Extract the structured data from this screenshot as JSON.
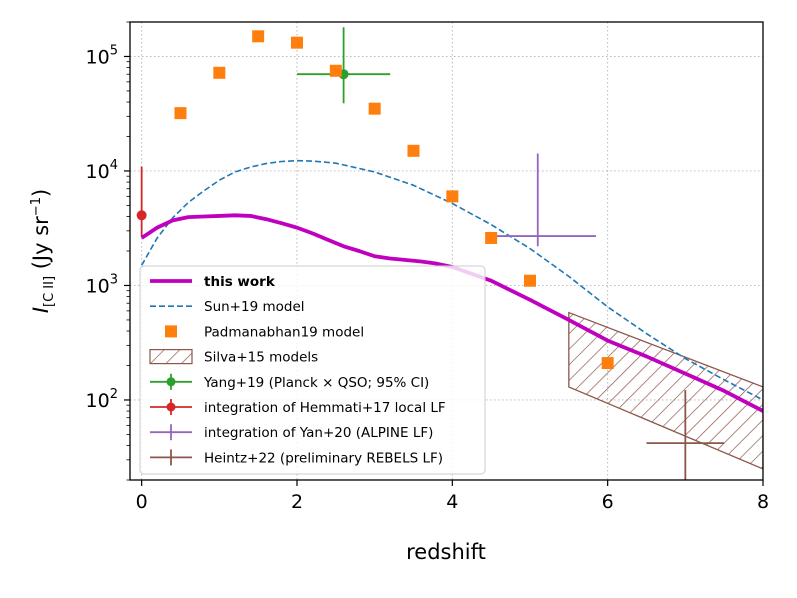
{
  "chart_data": {
    "type": "scatter",
    "xlabel": "redshift",
    "ylabel": "I[C II] (Jy sr−1)",
    "xlim": [
      -0.15,
      8
    ],
    "ylim": [
      20,
      200000
    ],
    "yscale": "log",
    "grid": true,
    "legend_placement": "lower-left",
    "x_ticks": [
      "0",
      "2",
      "4",
      "6",
      "8"
    ],
    "y_ticks": [
      "10^2",
      "10^3",
      "10^4",
      "10^5"
    ],
    "series": [
      {
        "name": "this work",
        "kind": "line",
        "color": "#bf00bf",
        "x": [
          0,
          0.2,
          0.4,
          0.6,
          0.8,
          1.0,
          1.2,
          1.4,
          1.6,
          1.8,
          2.0,
          2.2,
          2.4,
          2.6,
          2.8,
          3.0,
          3.2,
          3.4,
          3.6,
          3.8,
          4.0,
          4.5,
          5.0,
          5.5,
          6.0,
          6.5,
          7.0,
          7.5,
          8.0
        ],
        "y": [
          2600,
          3200,
          3700,
          3950,
          4000,
          4050,
          4100,
          4050,
          3800,
          3500,
          3200,
          2850,
          2500,
          2200,
          2000,
          1800,
          1720,
          1670,
          1620,
          1550,
          1450,
          1100,
          750,
          500,
          330,
          240,
          170,
          120,
          80
        ]
      },
      {
        "name": "Sun+19 model",
        "kind": "dashed-line",
        "color": "#1f77b4",
        "x": [
          0,
          0.2,
          0.4,
          0.6,
          0.8,
          1.0,
          1.2,
          1.4,
          1.6,
          1.8,
          2.0,
          2.2,
          2.5,
          3.0,
          3.5,
          4.0,
          4.5,
          5.0,
          5.5,
          6.0,
          6.5,
          7.0,
          7.5,
          8.0
        ],
        "y": [
          1500,
          2600,
          3900,
          5300,
          6700,
          8300,
          9800,
          10800,
          11600,
          12100,
          12300,
          12200,
          11700,
          9800,
          7500,
          5200,
          3400,
          2100,
          1200,
          650,
          380,
          230,
          150,
          100
        ]
      },
      {
        "name": "Padmanabhan19 model",
        "kind": "square-markers",
        "color": "#ff7f0e",
        "x": [
          0.5,
          1.0,
          1.5,
          2.0,
          2.5,
          3.0,
          3.5,
          4.0,
          4.5,
          5.0,
          6.0
        ],
        "y": [
          32000,
          72000,
          150000,
          132000,
          75000,
          35000,
          15000,
          6000,
          2600,
          1100,
          210
        ]
      },
      {
        "name": "Silva+15 models",
        "kind": "hatched-region",
        "color": "#8c564b",
        "x": [
          5.5,
          8.0
        ],
        "y_upper": [
          580,
          130
        ],
        "y_lower": [
          130,
          25
        ]
      },
      {
        "name": "Yang+19 (Planck × QSO; 95% CI)",
        "kind": "errorbar",
        "color": "#2ca02c",
        "points": [
          {
            "x": 2.6,
            "y": 70000,
            "xerr": [
              0.6,
              0.6
            ],
            "yerr": [
              31000,
              110000
            ]
          }
        ]
      },
      {
        "name": "integration of Hemmati+17 local LF",
        "kind": "errorbar",
        "color": "#d62728",
        "points": [
          {
            "x": 0.0,
            "y": 4100,
            "yerr": [
              1400,
              6800
            ]
          }
        ]
      },
      {
        "name": "integration of Yan+20 (ALPINE LF)",
        "kind": "errorbar",
        "color": "#9467bd",
        "points": [
          {
            "x": 5.1,
            "y": 2700,
            "xerr": [
              0.6,
              0.75
            ],
            "yerr": [
              500,
              11500
            ],
            "marker": false
          }
        ]
      },
      {
        "name": "Heintz+22 (preliminary REBELS LF)",
        "kind": "errorbar",
        "color": "#8c564b",
        "points": [
          {
            "x": 7.0,
            "y": 42,
            "xerr": [
              0.5,
              0.5
            ],
            "yerr": [
              27,
              80
            ],
            "marker": false
          }
        ]
      }
    ]
  }
}
